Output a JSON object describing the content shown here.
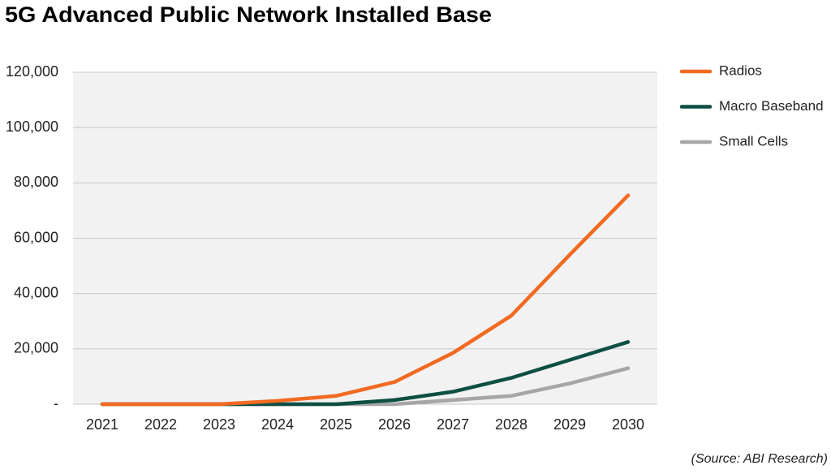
{
  "chart_data": {
    "type": "line",
    "title": "5G Advanced Public Network Installed Base",
    "source": "(Source: ABI Research)",
    "categories": [
      "2021",
      "2022",
      "2023",
      "2024",
      "2025",
      "2026",
      "2027",
      "2028",
      "2029",
      "2030"
    ],
    "series": [
      {
        "name": "Radios",
        "color": "#f26a21",
        "values": [
          0,
          0,
          0,
          1200,
          3000,
          8000,
          18500,
          32000,
          54000,
          75500
        ]
      },
      {
        "name": "Macro Baseband",
        "color": "#0e4f45",
        "values": [
          0,
          0,
          0,
          0,
          0,
          1500,
          4500,
          9500,
          16000,
          22500
        ]
      },
      {
        "name": "Small Cells",
        "color": "#a6a6a6",
        "values": [
          0,
          0,
          0,
          0,
          0,
          0,
          1500,
          3000,
          7500,
          13000
        ]
      }
    ],
    "ylim": [
      0,
      120000
    ],
    "yticks": [
      {
        "value": 0,
        "label": "-"
      },
      {
        "value": 20000,
        "label": "20,000"
      },
      {
        "value": 40000,
        "label": "40,000"
      },
      {
        "value": 60000,
        "label": "60,000"
      },
      {
        "value": 80000,
        "label": "80,000"
      },
      {
        "value": 100000,
        "label": "100,000"
      },
      {
        "value": 120000,
        "label": "120,000"
      }
    ],
    "grid": true,
    "legend": "right"
  }
}
